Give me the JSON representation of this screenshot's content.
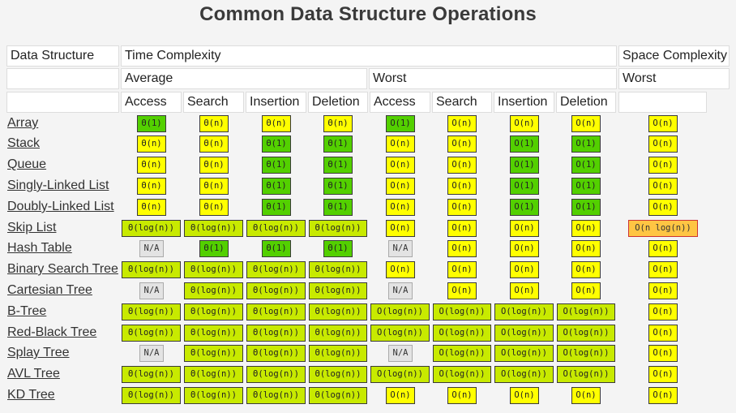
{
  "title": "Common Data Structure Operations",
  "headers": {
    "data_structure": "Data Structure",
    "time_complexity": "Time Complexity",
    "space_complexity": "Space Complexity",
    "average": "Average",
    "worst_time": "Worst",
    "worst_space": "Worst",
    "columns": [
      "Access",
      "Search",
      "Insertion",
      "Deletion",
      "Access",
      "Search",
      "Insertion",
      "Deletion"
    ]
  },
  "colors": {
    "green": "#53d000",
    "lime": "#c8ea00",
    "yellow": "#ffff00",
    "orange": "#ffc543",
    "gray": "#e3e3e3"
  },
  "rows": [
    {
      "name": "Array",
      "cells": [
        {
          "v": "Θ(1)",
          "c": "green"
        },
        {
          "v": "Θ(n)",
          "c": "yellow"
        },
        {
          "v": "Θ(n)",
          "c": "yellow"
        },
        {
          "v": "Θ(n)",
          "c": "yellow"
        },
        {
          "v": "O(1)",
          "c": "green"
        },
        {
          "v": "O(n)",
          "c": "yellow"
        },
        {
          "v": "O(n)",
          "c": "yellow"
        },
        {
          "v": "O(n)",
          "c": "yellow"
        },
        {
          "v": "O(n)",
          "c": "yellow"
        }
      ]
    },
    {
      "name": "Stack",
      "cells": [
        {
          "v": "Θ(n)",
          "c": "yellow"
        },
        {
          "v": "Θ(n)",
          "c": "yellow"
        },
        {
          "v": "Θ(1)",
          "c": "green"
        },
        {
          "v": "Θ(1)",
          "c": "green"
        },
        {
          "v": "O(n)",
          "c": "yellow"
        },
        {
          "v": "O(n)",
          "c": "yellow"
        },
        {
          "v": "O(1)",
          "c": "green"
        },
        {
          "v": "O(1)",
          "c": "green"
        },
        {
          "v": "O(n)",
          "c": "yellow"
        }
      ]
    },
    {
      "name": "Queue",
      "cells": [
        {
          "v": "Θ(n)",
          "c": "yellow"
        },
        {
          "v": "Θ(n)",
          "c": "yellow"
        },
        {
          "v": "Θ(1)",
          "c": "green"
        },
        {
          "v": "Θ(1)",
          "c": "green"
        },
        {
          "v": "O(n)",
          "c": "yellow"
        },
        {
          "v": "O(n)",
          "c": "yellow"
        },
        {
          "v": "O(1)",
          "c": "green"
        },
        {
          "v": "O(1)",
          "c": "green"
        },
        {
          "v": "O(n)",
          "c": "yellow"
        }
      ]
    },
    {
      "name": "Singly-Linked List",
      "cells": [
        {
          "v": "Θ(n)",
          "c": "yellow"
        },
        {
          "v": "Θ(n)",
          "c": "yellow"
        },
        {
          "v": "Θ(1)",
          "c": "green"
        },
        {
          "v": "Θ(1)",
          "c": "green"
        },
        {
          "v": "O(n)",
          "c": "yellow"
        },
        {
          "v": "O(n)",
          "c": "yellow"
        },
        {
          "v": "O(1)",
          "c": "green"
        },
        {
          "v": "O(1)",
          "c": "green"
        },
        {
          "v": "O(n)",
          "c": "yellow"
        }
      ]
    },
    {
      "name": "Doubly-Linked List",
      "cells": [
        {
          "v": "Θ(n)",
          "c": "yellow"
        },
        {
          "v": "Θ(n)",
          "c": "yellow"
        },
        {
          "v": "Θ(1)",
          "c": "green"
        },
        {
          "v": "Θ(1)",
          "c": "green"
        },
        {
          "v": "O(n)",
          "c": "yellow"
        },
        {
          "v": "O(n)",
          "c": "yellow"
        },
        {
          "v": "O(1)",
          "c": "green"
        },
        {
          "v": "O(1)",
          "c": "green"
        },
        {
          "v": "O(n)",
          "c": "yellow"
        }
      ]
    },
    {
      "name": "Skip List",
      "cells": [
        {
          "v": "Θ(log(n))",
          "c": "lime"
        },
        {
          "v": "Θ(log(n))",
          "c": "lime"
        },
        {
          "v": "Θ(log(n))",
          "c": "lime"
        },
        {
          "v": "Θ(log(n))",
          "c": "lime"
        },
        {
          "v": "O(n)",
          "c": "yellow"
        },
        {
          "v": "O(n)",
          "c": "yellow"
        },
        {
          "v": "O(n)",
          "c": "yellow"
        },
        {
          "v": "O(n)",
          "c": "yellow"
        },
        {
          "v": "O(n log(n))",
          "c": "orange"
        }
      ]
    },
    {
      "name": "Hash Table",
      "cells": [
        {
          "v": "N/A",
          "c": "gray"
        },
        {
          "v": "Θ(1)",
          "c": "green"
        },
        {
          "v": "Θ(1)",
          "c": "green"
        },
        {
          "v": "Θ(1)",
          "c": "green"
        },
        {
          "v": "N/A",
          "c": "gray"
        },
        {
          "v": "O(n)",
          "c": "yellow"
        },
        {
          "v": "O(n)",
          "c": "yellow"
        },
        {
          "v": "O(n)",
          "c": "yellow"
        },
        {
          "v": "O(n)",
          "c": "yellow"
        }
      ]
    },
    {
      "name": "Binary Search Tree",
      "cells": [
        {
          "v": "Θ(log(n))",
          "c": "lime"
        },
        {
          "v": "Θ(log(n))",
          "c": "lime"
        },
        {
          "v": "Θ(log(n))",
          "c": "lime"
        },
        {
          "v": "Θ(log(n))",
          "c": "lime"
        },
        {
          "v": "O(n)",
          "c": "yellow"
        },
        {
          "v": "O(n)",
          "c": "yellow"
        },
        {
          "v": "O(n)",
          "c": "yellow"
        },
        {
          "v": "O(n)",
          "c": "yellow"
        },
        {
          "v": "O(n)",
          "c": "yellow"
        }
      ]
    },
    {
      "name": "Cartesian Tree",
      "cells": [
        {
          "v": "N/A",
          "c": "gray"
        },
        {
          "v": "Θ(log(n))",
          "c": "lime"
        },
        {
          "v": "Θ(log(n))",
          "c": "lime"
        },
        {
          "v": "Θ(log(n))",
          "c": "lime"
        },
        {
          "v": "N/A",
          "c": "gray"
        },
        {
          "v": "O(n)",
          "c": "yellow"
        },
        {
          "v": "O(n)",
          "c": "yellow"
        },
        {
          "v": "O(n)",
          "c": "yellow"
        },
        {
          "v": "O(n)",
          "c": "yellow"
        }
      ]
    },
    {
      "name": "B-Tree",
      "cells": [
        {
          "v": "Θ(log(n))",
          "c": "lime"
        },
        {
          "v": "Θ(log(n))",
          "c": "lime"
        },
        {
          "v": "Θ(log(n))",
          "c": "lime"
        },
        {
          "v": "Θ(log(n))",
          "c": "lime"
        },
        {
          "v": "O(log(n))",
          "c": "lime"
        },
        {
          "v": "O(log(n))",
          "c": "lime"
        },
        {
          "v": "O(log(n))",
          "c": "lime"
        },
        {
          "v": "O(log(n))",
          "c": "lime"
        },
        {
          "v": "O(n)",
          "c": "yellow"
        }
      ]
    },
    {
      "name": "Red-Black Tree",
      "cells": [
        {
          "v": "Θ(log(n))",
          "c": "lime"
        },
        {
          "v": "Θ(log(n))",
          "c": "lime"
        },
        {
          "v": "Θ(log(n))",
          "c": "lime"
        },
        {
          "v": "Θ(log(n))",
          "c": "lime"
        },
        {
          "v": "O(log(n))",
          "c": "lime"
        },
        {
          "v": "O(log(n))",
          "c": "lime"
        },
        {
          "v": "O(log(n))",
          "c": "lime"
        },
        {
          "v": "O(log(n))",
          "c": "lime"
        },
        {
          "v": "O(n)",
          "c": "yellow"
        }
      ]
    },
    {
      "name": "Splay Tree",
      "cells": [
        {
          "v": "N/A",
          "c": "gray"
        },
        {
          "v": "Θ(log(n))",
          "c": "lime"
        },
        {
          "v": "Θ(log(n))",
          "c": "lime"
        },
        {
          "v": "Θ(log(n))",
          "c": "lime"
        },
        {
          "v": "N/A",
          "c": "gray"
        },
        {
          "v": "O(log(n))",
          "c": "lime"
        },
        {
          "v": "O(log(n))",
          "c": "lime"
        },
        {
          "v": "O(log(n))",
          "c": "lime"
        },
        {
          "v": "O(n)",
          "c": "yellow"
        }
      ]
    },
    {
      "name": "AVL Tree",
      "cells": [
        {
          "v": "Θ(log(n))",
          "c": "lime"
        },
        {
          "v": "Θ(log(n))",
          "c": "lime"
        },
        {
          "v": "Θ(log(n))",
          "c": "lime"
        },
        {
          "v": "Θ(log(n))",
          "c": "lime"
        },
        {
          "v": "O(log(n))",
          "c": "lime"
        },
        {
          "v": "O(log(n))",
          "c": "lime"
        },
        {
          "v": "O(log(n))",
          "c": "lime"
        },
        {
          "v": "O(log(n))",
          "c": "lime"
        },
        {
          "v": "O(n)",
          "c": "yellow"
        }
      ]
    },
    {
      "name": "KD Tree",
      "cells": [
        {
          "v": "Θ(log(n))",
          "c": "lime"
        },
        {
          "v": "Θ(log(n))",
          "c": "lime"
        },
        {
          "v": "Θ(log(n))",
          "c": "lime"
        },
        {
          "v": "Θ(log(n))",
          "c": "lime"
        },
        {
          "v": "O(n)",
          "c": "yellow"
        },
        {
          "v": "O(n)",
          "c": "yellow"
        },
        {
          "v": "O(n)",
          "c": "yellow"
        },
        {
          "v": "O(n)",
          "c": "yellow"
        },
        {
          "v": "O(n)",
          "c": "yellow"
        }
      ]
    }
  ]
}
